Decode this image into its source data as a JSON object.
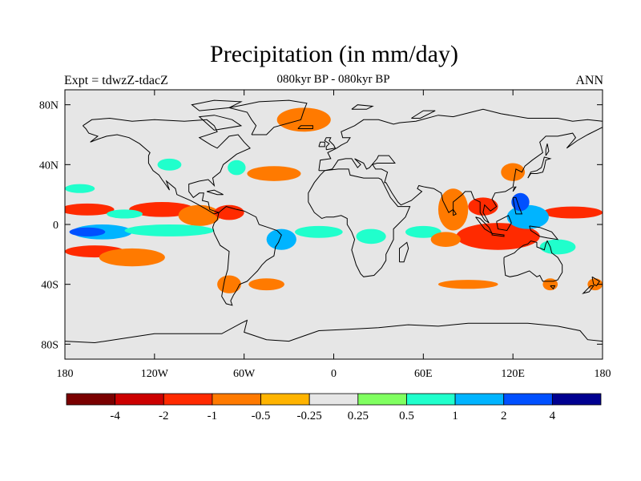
{
  "title": "Precipitation (in mm/day)",
  "subtitle": "080kyr BP - 080kyr BP",
  "left_label": "Expt = tdwzZ-tdacZ",
  "right_label": "ANN",
  "map": {
    "projection": "cylindrical-equidistant",
    "lon_range": [
      -180,
      180
    ],
    "lat_range": [
      -90,
      90
    ],
    "background_color": "#e6e6e6",
    "coastline_color": "#000000",
    "lon_ticks": [
      {
        "value": -180,
        "label": "180"
      },
      {
        "value": -120,
        "label": "120W"
      },
      {
        "value": -60,
        "label": "60W"
      },
      {
        "value": 0,
        "label": "0"
      },
      {
        "value": 60,
        "label": "60E"
      },
      {
        "value": 120,
        "label": "120E"
      },
      {
        "value": 180,
        "label": "180"
      }
    ],
    "lat_ticks": [
      {
        "value": 80,
        "label": "80N"
      },
      {
        "value": 40,
        "label": "40N"
      },
      {
        "value": 0,
        "label": "0"
      },
      {
        "value": -40,
        "label": "40S"
      },
      {
        "value": -80,
        "label": "80S"
      }
    ]
  },
  "colorbar": {
    "colors": [
      "#7a0000",
      "#cc0000",
      "#ff2a00",
      "#ff7a00",
      "#ffb400",
      "#e6e6e6",
      "#80ff60",
      "#20ffcc",
      "#00b4ff",
      "#0050ff",
      "#000090"
    ],
    "labels": [
      "-4",
      "-2",
      "-1",
      "-0.5",
      "-0.25",
      "0.25",
      "0.5",
      "1",
      "2",
      "4"
    ]
  },
  "anomaly_regions": [
    {
      "lon": -165,
      "lat": 10,
      "rx": 18,
      "ry": 4,
      "level": "-1"
    },
    {
      "lon": -115,
      "lat": 10,
      "rx": 22,
      "ry": 5,
      "level": "-1"
    },
    {
      "lon": -90,
      "lat": 6,
      "rx": 14,
      "ry": 7,
      "level": "-0.5"
    },
    {
      "lon": -70,
      "lat": 8,
      "rx": 10,
      "ry": 5,
      "level": "-1"
    },
    {
      "lon": -160,
      "lat": -18,
      "rx": 20,
      "ry": 4,
      "level": "-1"
    },
    {
      "lon": -135,
      "lat": -22,
      "rx": 22,
      "ry": 6,
      "level": "-0.5"
    },
    {
      "lon": -40,
      "lat": 34,
      "rx": 18,
      "ry": 5,
      "level": "-0.5"
    },
    {
      "lon": -65,
      "lat": 38,
      "rx": 6,
      "ry": 5,
      "level": "0.5"
    },
    {
      "lon": -20,
      "lat": 70,
      "rx": 18,
      "ry": 8,
      "level": "-0.5"
    },
    {
      "lon": 110,
      "lat": -8,
      "rx": 28,
      "ry": 9,
      "level": "-1"
    },
    {
      "lon": 80,
      "lat": 10,
      "rx": 10,
      "ry": 14,
      "level": "-0.5"
    },
    {
      "lon": 100,
      "lat": 12,
      "rx": 10,
      "ry": 6,
      "level": "-1"
    },
    {
      "lon": 160,
      "lat": 8,
      "rx": 20,
      "ry": 4,
      "level": "-1"
    },
    {
      "lon": 130,
      "lat": 5,
      "rx": 14,
      "ry": 8,
      "level": "1"
    },
    {
      "lon": 125,
      "lat": 15,
      "rx": 6,
      "ry": 6,
      "level": "2"
    },
    {
      "lon": -155,
      "lat": -5,
      "rx": 20,
      "ry": 5,
      "level": "1"
    },
    {
      "lon": -165,
      "lat": -5,
      "rx": 12,
      "ry": 3,
      "level": "2"
    },
    {
      "lon": -110,
      "lat": -4,
      "rx": 30,
      "ry": 4,
      "level": "0.5"
    },
    {
      "lon": -140,
      "lat": 7,
      "rx": 12,
      "ry": 3,
      "level": "0.5"
    },
    {
      "lon": -35,
      "lat": -10,
      "rx": 10,
      "ry": 7,
      "level": "1"
    },
    {
      "lon": -10,
      "lat": -5,
      "rx": 16,
      "ry": 4,
      "level": "0.5"
    },
    {
      "lon": 25,
      "lat": -8,
      "rx": 10,
      "ry": 5,
      "level": "0.5"
    },
    {
      "lon": 60,
      "lat": -5,
      "rx": 12,
      "ry": 4,
      "level": "0.5"
    },
    {
      "lon": 75,
      "lat": -10,
      "rx": 10,
      "ry": 5,
      "level": "-0.5"
    },
    {
      "lon": 150,
      "lat": -15,
      "rx": 12,
      "ry": 5,
      "level": "0.5"
    },
    {
      "lon": 145,
      "lat": -40,
      "rx": 5,
      "ry": 4,
      "level": "-0.5"
    },
    {
      "lon": 175,
      "lat": -40,
      "rx": 5,
      "ry": 4,
      "level": "-0.5"
    },
    {
      "lon": -70,
      "lat": -40,
      "rx": 8,
      "ry": 6,
      "level": "-0.5"
    },
    {
      "lon": -45,
      "lat": -40,
      "rx": 12,
      "ry": 4,
      "level": "-0.5"
    },
    {
      "lon": 90,
      "lat": -40,
      "rx": 20,
      "ry": 3,
      "level": "-0.5"
    },
    {
      "lon": 120,
      "lat": 35,
      "rx": 8,
      "ry": 6,
      "level": "-0.5"
    },
    {
      "lon": -170,
      "lat": 24,
      "rx": 10,
      "ry": 3,
      "level": "0.5"
    },
    {
      "lon": -110,
      "lat": 40,
      "rx": 8,
      "ry": 4,
      "level": "0.5"
    }
  ]
}
